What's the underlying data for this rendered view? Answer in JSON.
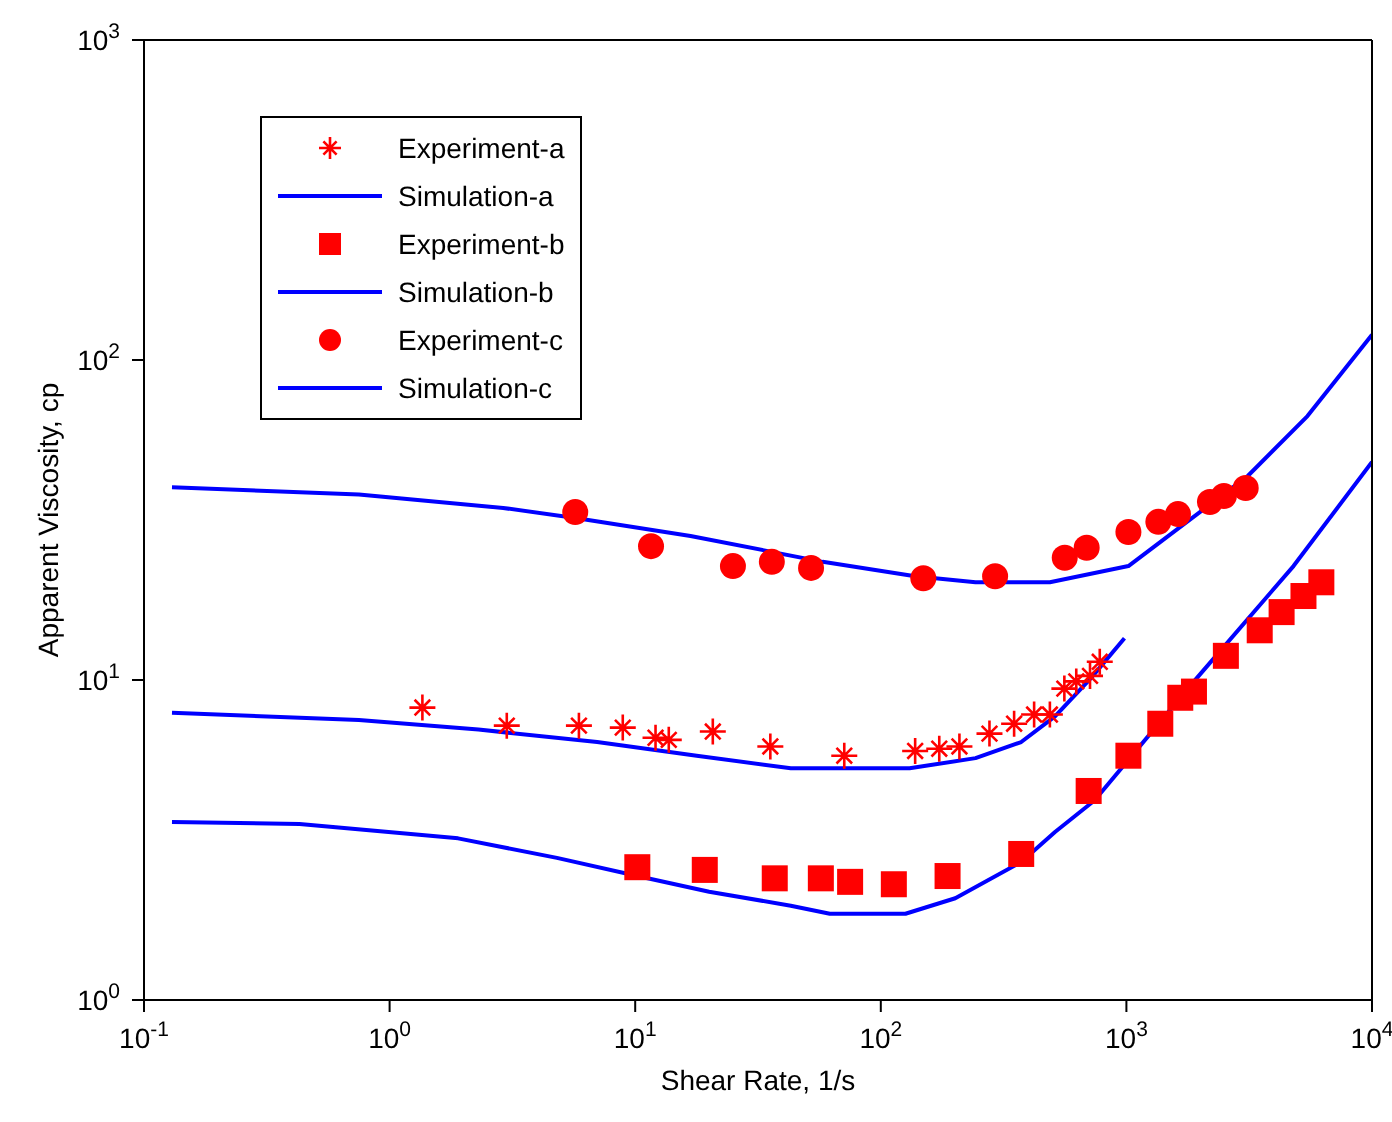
{
  "chart_data": {
    "type": "scatter",
    "xlabel": "Shear Rate, 1/s",
    "ylabel": "Apparent Viscosity, cp",
    "log": "xy",
    "legend": "top left",
    "xlim": [
      0.1,
      10000
    ],
    "ylim": [
      1,
      1000
    ],
    "xticks": [
      {
        "value": 0.1,
        "label": "10$^{-1}$"
      },
      {
        "value": 1,
        "label": "10$^{0}$"
      },
      {
        "value": 10,
        "label": "10$^{1}$"
      },
      {
        "value": 100,
        "label": "10$^{2}$"
      },
      {
        "value": 1000,
        "label": "10$^{3}$"
      },
      {
        "value": 10000,
        "label": "10$^{4}$"
      }
    ],
    "yticks": [
      {
        "value": 1,
        "label": "10$^{0}$"
      },
      {
        "value": 10,
        "label": "10$^{1}$"
      },
      {
        "value": 100,
        "label": "10$^{2}$"
      },
      {
        "value": 1000,
        "label": "10$^{3}$"
      }
    ],
    "series": [
      {
        "name": "Experiment-a",
        "marker": "cross",
        "color": "#ff0000",
        "x": [
          1.36,
          3.0,
          5.9,
          8.9,
          12.1,
          13.7,
          20.7,
          35.5,
          71,
          138,
          173,
          209,
          277,
          349,
          421,
          488,
          559,
          625,
          711,
          779
        ],
        "values": [
          8.2,
          7.2,
          7.2,
          7.1,
          6.6,
          6.5,
          6.9,
          6.2,
          5.8,
          6.0,
          6.1,
          6.2,
          6.8,
          7.3,
          7.8,
          7.8,
          9.4,
          9.9,
          10.3,
          11.4
        ]
      },
      {
        "name": "Simulation-a",
        "type": "line",
        "marker": "none",
        "line_style": "solid",
        "color": "#0000ff",
        "x": [
          0.13,
          0.75,
          2.3,
          7.0,
          17.8,
          43,
          131,
          243,
          373,
          512,
          714,
          982
        ],
        "values": [
          7.9,
          7.5,
          7.0,
          6.4,
          5.8,
          5.3,
          5.3,
          5.7,
          6.4,
          7.7,
          10.1,
          13.5
        ]
      },
      {
        "name": "Experiment-b",
        "marker": "square",
        "color": "#ff0000",
        "x": [
          10.2,
          19.2,
          37,
          57,
          75,
          113,
          187,
          373,
          702,
          1019,
          1374,
          1657,
          1884,
          2541,
          3490,
          4285,
          5260,
          6220
        ],
        "values": [
          2.6,
          2.55,
          2.4,
          2.4,
          2.34,
          2.3,
          2.44,
          2.86,
          4.5,
          5.8,
          7.3,
          8.8,
          9.2,
          11.9,
          14.3,
          16.3,
          18.3,
          20.2
        ]
      },
      {
        "name": "Simulation-b",
        "type": "line",
        "marker": "none",
        "line_style": "solid",
        "color": "#0000ff",
        "x": [
          0.13,
          0.43,
          1.9,
          4.8,
          10.2,
          20,
          43,
          62,
          126,
          201,
          373,
          512,
          741,
          1884,
          4790,
          10000
        ],
        "values": [
          3.6,
          3.55,
          3.2,
          2.78,
          2.44,
          2.18,
          1.97,
          1.86,
          1.86,
          2.08,
          2.7,
          3.35,
          4.2,
          9.9,
          22.7,
          48
        ]
      },
      {
        "name": "Experiment-c",
        "marker": "circle",
        "color": "#ff0000",
        "x": [
          5.7,
          11.6,
          25,
          36,
          52,
          149,
          292,
          561,
          689,
          1019,
          1349,
          1622,
          2188,
          2494,
          3060
        ],
        "values": [
          33.5,
          26.2,
          22.7,
          23.4,
          22.4,
          20.8,
          21.1,
          24.1,
          25.9,
          29,
          31.2,
          33,
          36,
          37.6,
          39.8
        ]
      },
      {
        "name": "Simulation-c",
        "type": "line",
        "marker": "none",
        "line_style": "solid",
        "color": "#0000ff",
        "x": [
          0.13,
          0.75,
          2.9,
          5.8,
          16.8,
          58,
          138,
          243,
          488,
          1019,
          3119,
          5460,
          10000
        ],
        "values": [
          40,
          38,
          34.5,
          32,
          28.2,
          23.4,
          21.1,
          20.2,
          20.2,
          22.7,
          43.4,
          66.8,
          120
        ]
      }
    ]
  }
}
